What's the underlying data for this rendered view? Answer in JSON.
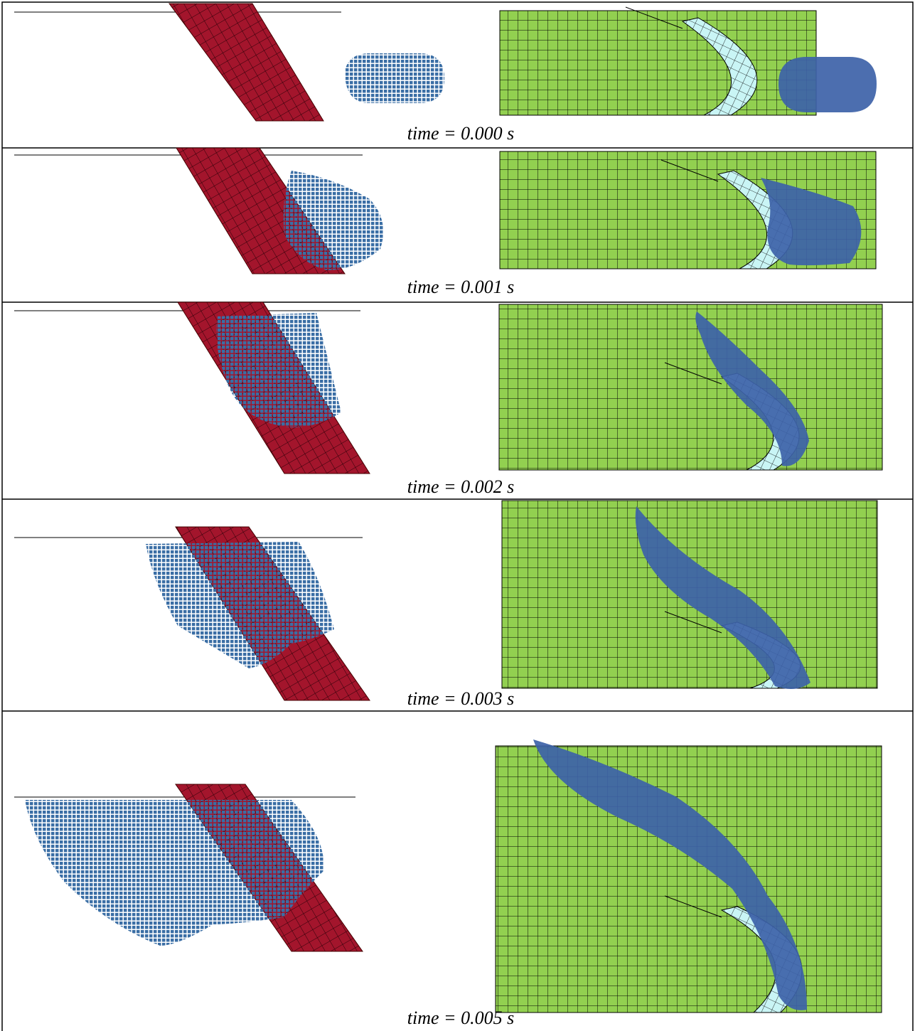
{
  "rows": [
    {
      "caption": "time = 0.000 s"
    },
    {
      "caption": "time = 0.001 s"
    },
    {
      "caption": "time = 0.002 s"
    },
    {
      "caption": "time = 0.003 s"
    },
    {
      "caption": "time = 0.005 s"
    }
  ]
}
